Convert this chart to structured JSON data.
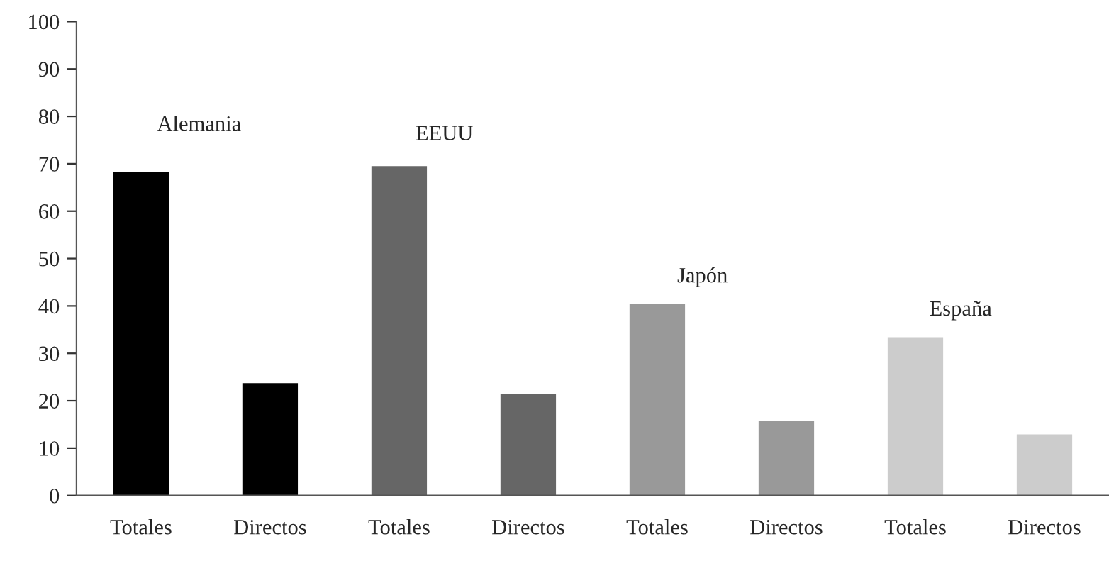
{
  "chart_data": {
    "type": "bar",
    "categories": [
      "Totales",
      "Directos",
      "Totales",
      "Directos",
      "Totales",
      "Directos",
      "Totales",
      "Directos"
    ],
    "values": [
      68.3,
      23.7,
      69.5,
      21.5,
      40.4,
      15.8,
      33.4,
      12.9
    ],
    "colors": [
      "#000000",
      "#000000",
      "#666666",
      "#666666",
      "#999999",
      "#999999",
      "#cccccc",
      "#cccccc"
    ],
    "annotations": [
      "Alemania",
      "EEUU",
      "Japón",
      "España"
    ],
    "ylim": [
      0,
      100
    ],
    "yticks": [
      0,
      10,
      20,
      30,
      40,
      50,
      60,
      70,
      80,
      90,
      100
    ],
    "grid": false,
    "legend": false
  }
}
